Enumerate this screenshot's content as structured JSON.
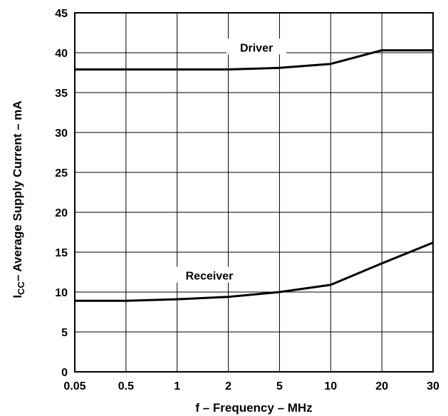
{
  "chart_data": {
    "type": "line",
    "title": "",
    "x_axis": {
      "label": "f – Frequency – MHz",
      "categories": [
        "0.05",
        "0.5",
        "1",
        "2",
        "5",
        "10",
        "20",
        "30"
      ]
    },
    "y_axis": {
      "label_main": "I",
      "label_sub": "CC",
      "label_rest": "– Average Supply Current – mA",
      "ylim": [
        0,
        45
      ],
      "ticks": [
        "0",
        "5",
        "10",
        "15",
        "20",
        "25",
        "30",
        "35",
        "40",
        "45"
      ]
    },
    "grid": true,
    "series": [
      {
        "name": "Driver",
        "x": [
          "0.05",
          "0.5",
          "1",
          "2",
          "5",
          "10",
          "20",
          "30"
        ],
        "y": [
          37.9,
          37.9,
          37.9,
          37.9,
          38.1,
          38.6,
          40.3,
          40.3
        ]
      },
      {
        "name": "Receiver",
        "x": [
          "0.05",
          "0.5",
          "1",
          "2",
          "5",
          "10",
          "20",
          "30"
        ],
        "y": [
          8.9,
          8.9,
          9.1,
          9.4,
          10.0,
          10.9,
          13.6,
          16.2
        ]
      }
    ],
    "colors": {
      "line": "#000000",
      "grid": "#000000",
      "background": "#ffffff"
    }
  }
}
